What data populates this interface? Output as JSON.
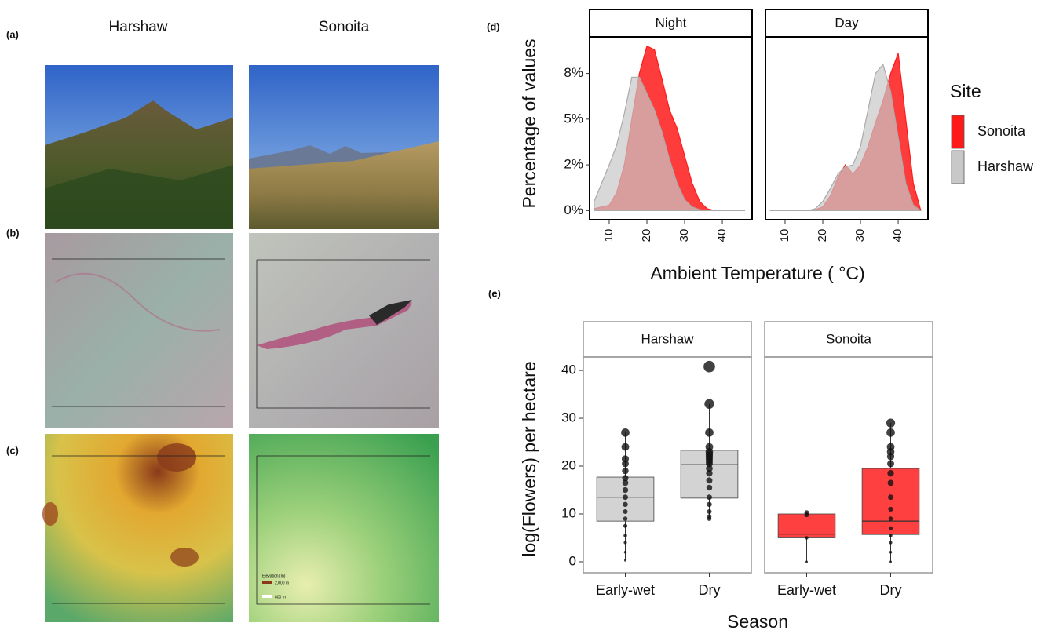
{
  "panel_labels": [
    "(a)",
    "(b)",
    "(c)",
    "(d)",
    "(e)"
  ],
  "columns": [
    "Harshaw",
    "Sonoita"
  ],
  "map_legend": {
    "title": "Elevation (m)",
    "high": "2,000 m",
    "low": "800 m"
  },
  "chart_data": [
    {
      "type": "density",
      "facets": [
        "Night",
        "Day"
      ],
      "ylabel": "Percentage of values",
      "xlabel": "Ambient Temperature ( °C)",
      "legend_title": "Site",
      "x": [
        6,
        8,
        10,
        12,
        14,
        16,
        18,
        20,
        22,
        24,
        26,
        28,
        30,
        32,
        34,
        36,
        38,
        40,
        42,
        44,
        46
      ],
      "series": [
        {
          "name": "Sonoita",
          "color": "#ff1a1a",
          "values": [
            [
              0.1,
              0.2,
              0.3,
              1.0,
              2.5,
              5.0,
              7.5,
              9.0,
              8.8,
              7.2,
              5.5,
              4.5,
              3.0,
              1.5,
              0.5,
              0.1,
              0,
              0,
              0,
              0,
              0
            ],
            [
              0,
              0,
              0,
              0,
              0,
              0,
              0.05,
              0.2,
              0.8,
              1.8,
              2.5,
              2.0,
              2.5,
              3.5,
              4.8,
              6.0,
              7.5,
              8.6,
              5.0,
              1.5,
              0
            ]
          ]
        },
        {
          "name": "Harshaw",
          "color": "#c8c8c8",
          "values": [
            [
              0.5,
              1.5,
              2.5,
              3.6,
              5.3,
              7.3,
              7.3,
              6.4,
              5.5,
              4.3,
              2.8,
              1.5,
              0.6,
              0.2,
              0.05,
              0,
              0,
              0,
              0,
              0,
              0
            ],
            [
              0,
              0,
              0,
              0,
              0,
              0,
              0.1,
              0.5,
              1.2,
              2.0,
              2.4,
              2.5,
              3.5,
              5.5,
              7.5,
              8.0,
              6.5,
              4.0,
              1.5,
              0.3,
              0
            ]
          ]
        }
      ],
      "xlim": [
        4.8,
        47.9
      ],
      "xticks": [
        10,
        20,
        30,
        40
      ],
      "ylim": [
        -0.5,
        9.5
      ],
      "yticks": [
        {
          "value": 0,
          "label": "0%"
        },
        {
          "value": 2.5,
          "label": "2%"
        },
        {
          "value": 5,
          "label": "5%"
        },
        {
          "value": 7.5,
          "label": "8%"
        }
      ]
    },
    {
      "type": "box",
      "facets": [
        "Harshaw",
        "Sonoita"
      ],
      "colors": [
        "#d3d3d3",
        "#ff4040"
      ],
      "categories": [
        "Early-wet",
        "Dry"
      ],
      "ylabel": "log(Flowers) per hectare",
      "xlabel": "Season",
      "ylim": [
        -2.3,
        42.8
      ],
      "yticks": [
        0,
        10,
        20,
        30,
        40
      ],
      "boxes": [
        [
          {
            "low": 0.3,
            "q1": 8.5,
            "median": 13.5,
            "q3": 17.7,
            "high": 27,
            "points": [
              27,
              24,
              21.5,
              20.5,
              19,
              17.5,
              16.5,
              15,
              13.5,
              12,
              10.5,
              9,
              7.5,
              5.5,
              4,
              2,
              0.3
            ]
          },
          {
            "low": 9,
            "q1": 13.3,
            "median": 20.3,
            "q3": 23.3,
            "high": 33,
            "points": [
              40.8,
              33,
              27,
              24,
              23,
              22.5,
              22,
              21.5,
              21,
              20.5,
              19.5,
              18.5,
              17,
              15.5,
              13.5,
              12,
              10.5,
              9.5,
              9
            ]
          }
        ],
        [
          {
            "low": 0,
            "q1": 5,
            "median": 5.8,
            "q3": 10,
            "high": 10.3,
            "points": [
              10.3,
              9.8,
              5,
              0
            ]
          },
          {
            "low": 0,
            "q1": 5.7,
            "median": 8.5,
            "q3": 19.5,
            "high": 29,
            "points": [
              29,
              27,
              24,
              23,
              22,
              20.5,
              18.5,
              16.5,
              13.5,
              11,
              9,
              7,
              5.5,
              4,
              2,
              0
            ]
          }
        ]
      ]
    }
  ]
}
